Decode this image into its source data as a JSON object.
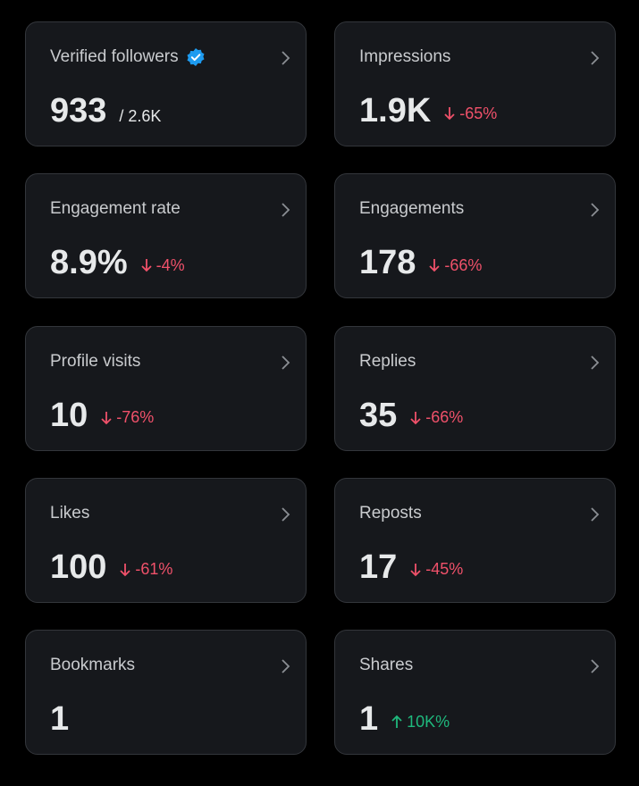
{
  "cards": [
    {
      "label": "Verified followers",
      "verified": true,
      "value": "933",
      "total": "/ 2.6K"
    },
    {
      "label": "Impressions",
      "value": "1.9K",
      "change": "-65%"
    },
    {
      "label": "Engagement rate",
      "value": "8.9%",
      "change": "-4%"
    },
    {
      "label": "Engagements",
      "value": "178",
      "change": "-66%"
    },
    {
      "label": "Profile visits",
      "value": "10",
      "change": "-76%"
    },
    {
      "label": "Replies",
      "value": "35",
      "change": "-66%"
    },
    {
      "label": "Likes",
      "value": "100",
      "change": "-61%"
    },
    {
      "label": "Reposts",
      "value": "17",
      "change": "-45%"
    },
    {
      "label": "Bookmarks",
      "value": "1"
    },
    {
      "label": "Shares",
      "value": "1",
      "change": "10K%"
    }
  ]
}
